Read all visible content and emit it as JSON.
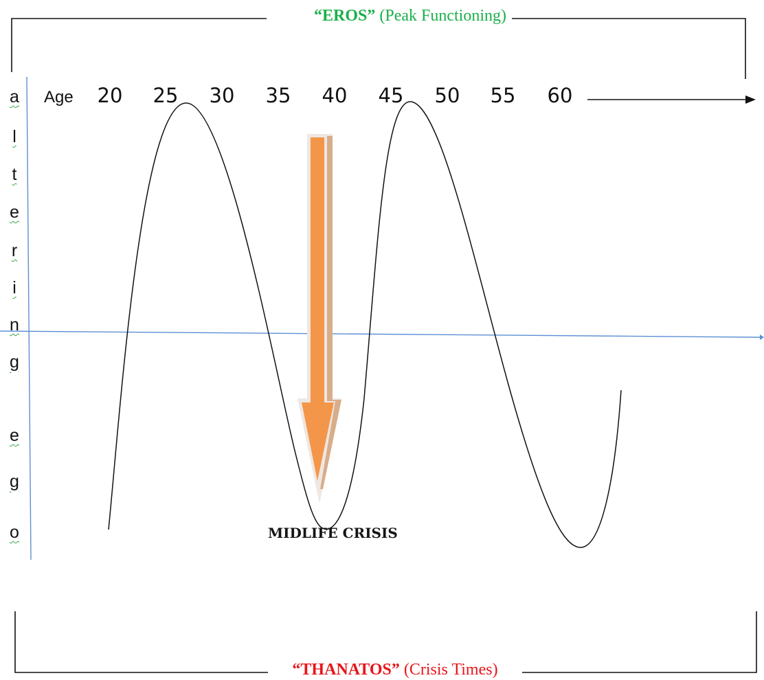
{
  "header": {
    "eros_quoted": "“EROS”",
    "eros_paren": "(Peak Functioning)"
  },
  "footer": {
    "thanatos_quoted": "“THANATOS”",
    "thanatos_paren": "(Crisis Times)"
  },
  "axis": {
    "age_label": "Age",
    "age_ticks": [
      "20",
      "25",
      "30",
      "35",
      "40",
      "45",
      "50",
      "55",
      "60"
    ]
  },
  "vertical_label_letters": [
    "a",
    "l",
    "t",
    "e",
    "r",
    "i",
    "n",
    "g",
    "e",
    "g",
    "o"
  ],
  "annotation": {
    "midlife_crisis": "MIDLIFE CRISIS"
  },
  "colors": {
    "eros": "#1bb04a",
    "thanatos": "#e8141a",
    "arrow_fill": "#f4964a",
    "axis_line": "#5b8fd4",
    "curve": "#111111"
  }
}
